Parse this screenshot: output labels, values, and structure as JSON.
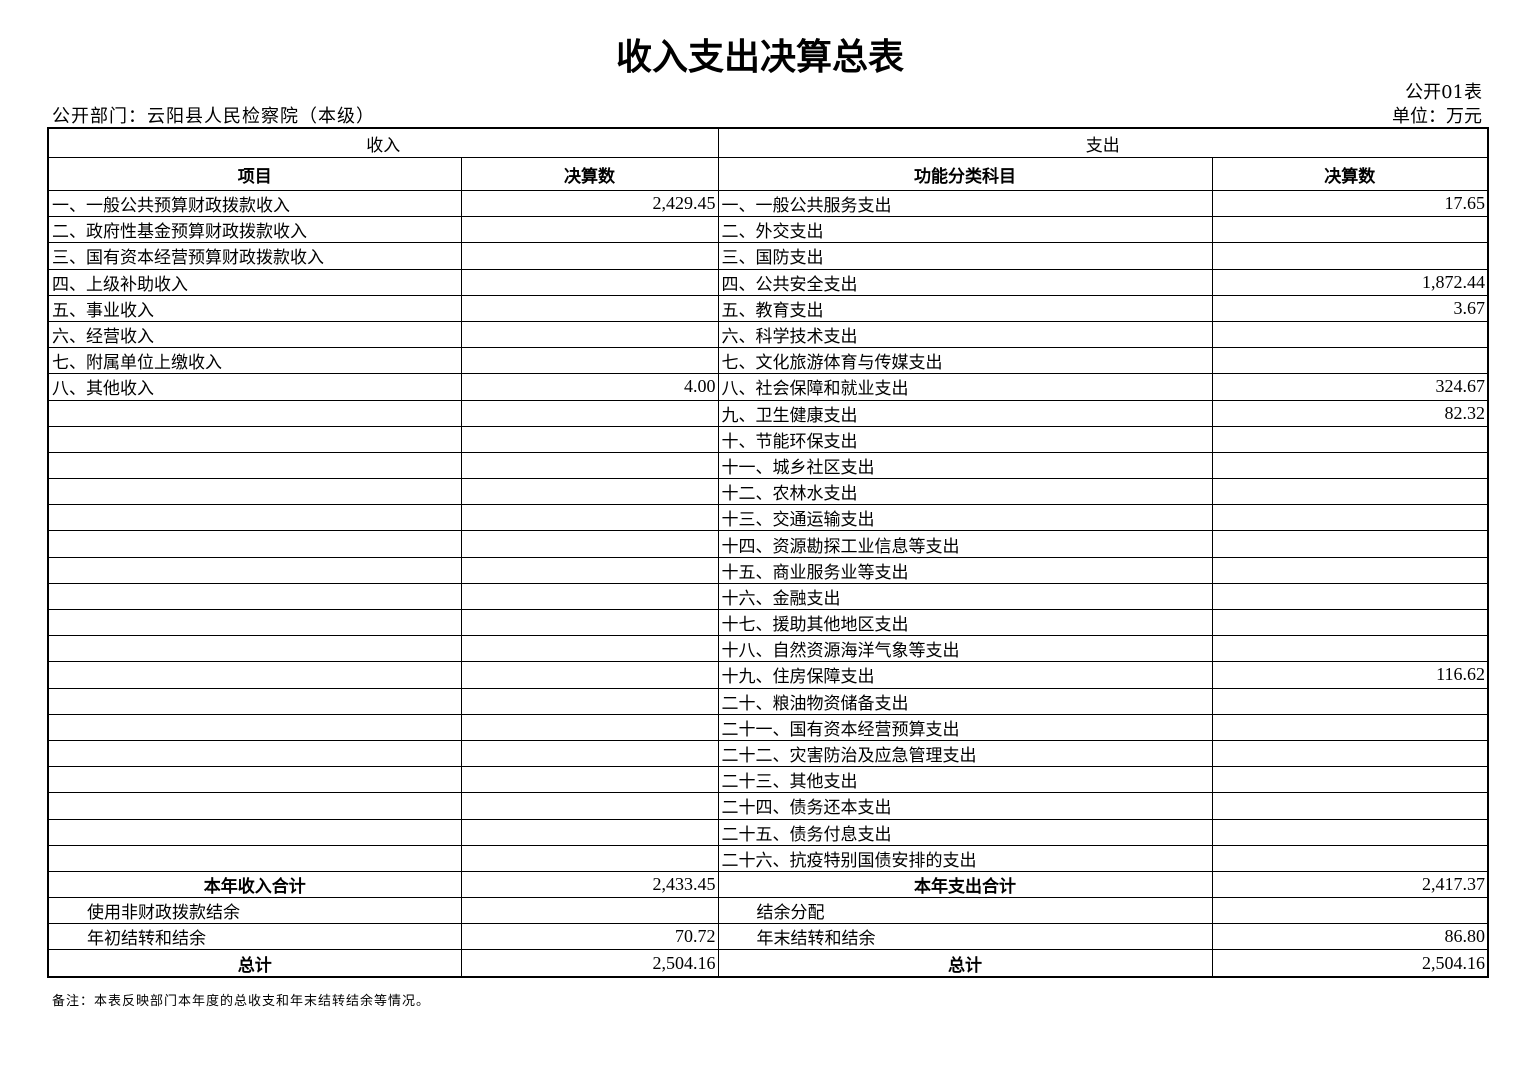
{
  "title": "收入支出决算总表",
  "table_code": "公开01表",
  "department": "公开部门：云阳县人民检察院（本级）",
  "unit": "单位：万元",
  "headers": {
    "income": "收入",
    "expense": "支出",
    "item": "项目",
    "amount": "决算数",
    "func": "功能分类科目",
    "amount2": "决算数"
  },
  "rows": [
    [
      "一、一般公共预算财政拨款收入",
      "2,429.45",
      "一、一般公共服务支出",
      "17.65"
    ],
    [
      "二、政府性基金预算财政拨款收入",
      "",
      "二、外交支出",
      ""
    ],
    [
      "三、国有资本经营预算财政拨款收入",
      "",
      "三、国防支出",
      ""
    ],
    [
      "四、上级补助收入",
      "",
      "四、公共安全支出",
      "1,872.44"
    ],
    [
      "五、事业收入",
      "",
      "五、教育支出",
      "3.67"
    ],
    [
      "六、经营收入",
      "",
      "六、科学技术支出",
      ""
    ],
    [
      "七、附属单位上缴收入",
      "",
      "七、文化旅游体育与传媒支出",
      ""
    ],
    [
      "八、其他收入",
      "4.00",
      "八、社会保障和就业支出",
      "324.67"
    ],
    [
      "",
      "",
      "九、卫生健康支出",
      "82.32"
    ],
    [
      "",
      "",
      "十、节能环保支出",
      ""
    ],
    [
      "",
      "",
      "十一、城乡社区支出",
      ""
    ],
    [
      "",
      "",
      "十二、农林水支出",
      ""
    ],
    [
      "",
      "",
      "十三、交通运输支出",
      ""
    ],
    [
      "",
      "",
      "十四、资源勘探工业信息等支出",
      ""
    ],
    [
      "",
      "",
      "十五、商业服务业等支出",
      ""
    ],
    [
      "",
      "",
      "十六、金融支出",
      ""
    ],
    [
      "",
      "",
      "十七、援助其他地区支出",
      ""
    ],
    [
      "",
      "",
      "十八、自然资源海洋气象等支出",
      ""
    ],
    [
      "",
      "",
      "十九、住房保障支出",
      "116.62"
    ],
    [
      "",
      "",
      "二十、粮油物资储备支出",
      ""
    ],
    [
      "",
      "",
      "二十一、国有资本经营预算支出",
      ""
    ],
    [
      "",
      "",
      "二十二、灾害防治及应急管理支出",
      ""
    ],
    [
      "",
      "",
      "二十三、其他支出",
      ""
    ],
    [
      "",
      "",
      "二十四、债务还本支出",
      ""
    ],
    [
      "",
      "",
      "二十五、债务付息支出",
      ""
    ],
    [
      "",
      "",
      "二十六、抗疫特别国债安排的支出",
      ""
    ]
  ],
  "summary": [
    {
      "left": "本年收入合计",
      "lv": "2,433.45",
      "right": "本年支出合计",
      "rv": "2,417.37",
      "bold": true
    },
    {
      "left": "使用非财政拨款结余",
      "lv": "",
      "right": "结余分配",
      "rv": "",
      "bold": false
    },
    {
      "left": "年初结转和结余",
      "lv": "70.72",
      "right": "年末结转和结余",
      "rv": "86.80",
      "bold": false
    },
    {
      "left": "总计",
      "lv": "2,504.16",
      "right": "总计",
      "rv": "2,504.16",
      "bold": true
    }
  ],
  "note": "备注：本表反映部门本年度的总收支和年末结转结余等情况。"
}
